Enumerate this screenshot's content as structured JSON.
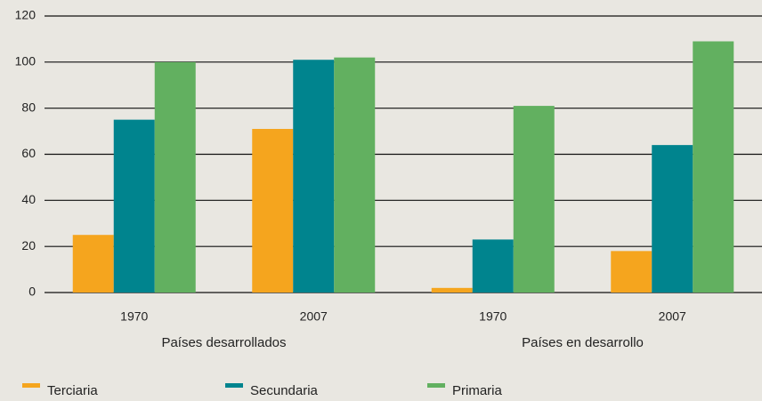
{
  "chart_data": {
    "type": "bar",
    "categories": [
      "1970",
      "2007",
      "1970",
      "2007"
    ],
    "group_labels": [
      "Países desarrollados",
      "Países en desarrollo"
    ],
    "series": [
      {
        "name": "Terciaria",
        "color": "#f5a51e",
        "values": [
          25,
          71,
          2,
          18
        ]
      },
      {
        "name": "Secundaria",
        "color": "#00848e",
        "values": [
          75,
          101,
          23,
          64
        ]
      },
      {
        "name": "Primaria",
        "color": "#62b060",
        "values": [
          100,
          102,
          81,
          109
        ]
      }
    ],
    "ylim": [
      0,
      120
    ],
    "yticks": [
      0,
      20,
      40,
      60,
      80,
      100,
      120
    ],
    "grid": true,
    "legend": "bottom"
  }
}
